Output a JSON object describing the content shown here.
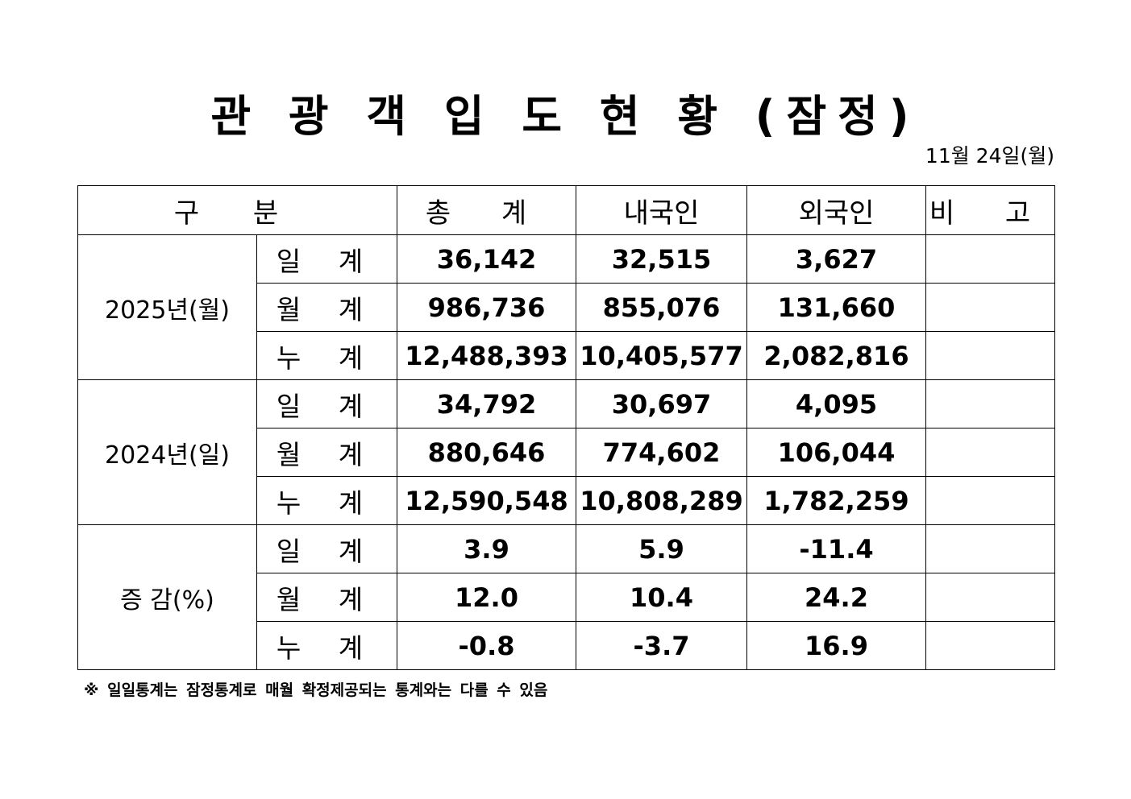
{
  "title": "관 광 객 입 도 현 황 (잠정)",
  "date": "11월 24일(월)",
  "header": {
    "category": "구 분",
    "total": "총 계",
    "domestic": "내국인",
    "foreign": "외국인",
    "remarks": "비 고"
  },
  "groups": [
    {
      "label": "2025년(월)",
      "rows": [
        {
          "label": "일 계",
          "total": "36,142",
          "domestic": "32,515",
          "foreign": "3,627",
          "remarks": ""
        },
        {
          "label": "월 계",
          "total": "986,736",
          "domestic": "855,076",
          "foreign": "131,660",
          "remarks": ""
        },
        {
          "label": "누 계",
          "total": "12,488,393",
          "domestic": "10,405,577",
          "foreign": "2,082,816",
          "remarks": ""
        }
      ]
    },
    {
      "label": "2024년(일)",
      "rows": [
        {
          "label": "일 계",
          "total": "34,792",
          "domestic": "30,697",
          "foreign": "4,095",
          "remarks": ""
        },
        {
          "label": "월 계",
          "total": "880,646",
          "domestic": "774,602",
          "foreign": "106,044",
          "remarks": ""
        },
        {
          "label": "누 계",
          "total": "12,590,548",
          "domestic": "10,808,289",
          "foreign": "1,782,259",
          "remarks": ""
        }
      ]
    },
    {
      "label": "증 감(%)",
      "rows": [
        {
          "label": "일 계",
          "total": "3.9",
          "domestic": "5.9",
          "foreign": "-11.4",
          "remarks": ""
        },
        {
          "label": "월 계",
          "total": "12.0",
          "domestic": "10.4",
          "foreign": "24.2",
          "remarks": ""
        },
        {
          "label": "누 계",
          "total": "-0.8",
          "domestic": "-3.7",
          "foreign": "16.9",
          "remarks": ""
        }
      ]
    }
  ],
  "footnote": "※ 일일통계는 잠정통계로 매월 확정제공되는 통계와는 다를 수 있음"
}
